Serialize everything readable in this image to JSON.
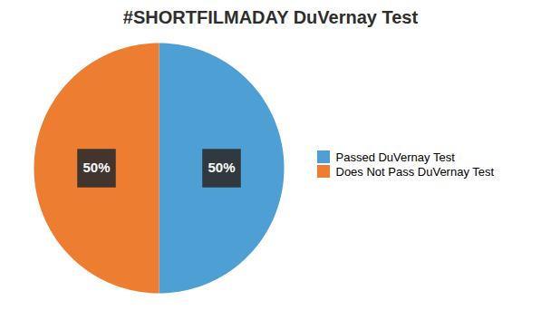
{
  "chart_data": {
    "type": "pie",
    "title": "#SHORTFILMADAY DuVernay Test",
    "categories": [
      "Passed DuVernay Test",
      "Does Not Pass DuVernay Test"
    ],
    "values": [
      50,
      50
    ],
    "value_labels": [
      "50%",
      "50%"
    ],
    "colors": [
      "#4E9FD4",
      "#ED7D31"
    ],
    "data_labels": true,
    "legend": "right"
  }
}
